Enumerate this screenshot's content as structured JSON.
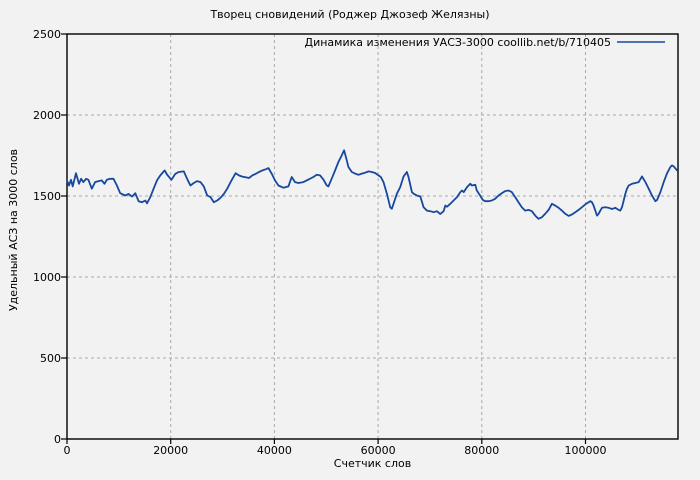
{
  "chart_data": {
    "type": "line",
    "title": "Творец сновидений (Роджер Джозеф Желязны)",
    "xlabel": "Счетчик слов",
    "ylabel": "Удельный АСЗ на 3000 слов",
    "xlim": [
      0,
      117840
    ],
    "ylim": [
      0,
      2500
    ],
    "x_tick_values": [
      0,
      20000,
      40000,
      60000,
      80000,
      100000
    ],
    "x_tick_labels": [
      "0",
      "20000",
      "40000",
      "60000",
      "80000",
      "100000"
    ],
    "y_tick_values": [
      0,
      500,
      1000,
      1500,
      2000,
      2500
    ],
    "y_tick_labels": [
      "0",
      "500",
      "1000",
      "1500",
      "2000",
      "2500"
    ],
    "grid": true,
    "legend_position": "top-right-inside",
    "series": [
      {
        "name": "Динамика изменения УАСЗ-3000 coollib.net/b/710405",
        "color": "#17489e",
        "points": [
          [
            0,
            1596
          ],
          [
            390,
            1565
          ],
          [
            780,
            1600
          ],
          [
            1100,
            1559
          ],
          [
            1740,
            1641
          ],
          [
            2320,
            1575
          ],
          [
            2710,
            1606
          ],
          [
            3160,
            1586
          ],
          [
            3680,
            1606
          ],
          [
            4130,
            1600
          ],
          [
            4780,
            1545
          ],
          [
            5420,
            1586
          ],
          [
            6070,
            1592
          ],
          [
            6710,
            1596
          ],
          [
            7230,
            1575
          ],
          [
            7680,
            1600
          ],
          [
            8330,
            1606
          ],
          [
            8970,
            1606
          ],
          [
            9620,
            1565
          ],
          [
            10260,
            1517
          ],
          [
            11230,
            1503
          ],
          [
            11880,
            1513
          ],
          [
            12520,
            1496
          ],
          [
            13170,
            1517
          ],
          [
            13810,
            1468
          ],
          [
            14460,
            1462
          ],
          [
            15100,
            1472
          ],
          [
            15420,
            1455
          ],
          [
            16070,
            1493
          ],
          [
            16710,
            1545
          ],
          [
            17360,
            1596
          ],
          [
            18000,
            1627
          ],
          [
            18840,
            1658
          ],
          [
            19290,
            1633
          ],
          [
            20130,
            1600
          ],
          [
            20900,
            1637
          ],
          [
            21550,
            1648
          ],
          [
            22520,
            1652
          ],
          [
            23160,
            1606
          ],
          [
            23800,
            1565
          ],
          [
            24450,
            1580
          ],
          [
            25090,
            1592
          ],
          [
            25740,
            1586
          ],
          [
            26380,
            1559
          ],
          [
            27030,
            1503
          ],
          [
            27680,
            1493
          ],
          [
            28320,
            1462
          ],
          [
            28970,
            1472
          ],
          [
            29610,
            1489
          ],
          [
            30260,
            1513
          ],
          [
            30900,
            1545
          ],
          [
            31550,
            1586
          ],
          [
            32520,
            1641
          ],
          [
            33160,
            1627
          ],
          [
            33810,
            1620
          ],
          [
            34450,
            1616
          ],
          [
            35100,
            1611
          ],
          [
            35740,
            1627
          ],
          [
            36390,
            1637
          ],
          [
            37030,
            1648
          ],
          [
            37680,
            1658
          ],
          [
            38320,
            1665
          ],
          [
            38840,
            1672
          ],
          [
            39480,
            1638
          ],
          [
            40120,
            1596
          ],
          [
            40770,
            1565
          ],
          [
            41730,
            1551
          ],
          [
            42700,
            1559
          ],
          [
            43340,
            1617
          ],
          [
            43980,
            1586
          ],
          [
            44630,
            1580
          ],
          [
            45590,
            1586
          ],
          [
            46560,
            1601
          ],
          [
            47520,
            1617
          ],
          [
            48160,
            1631
          ],
          [
            48810,
            1627
          ],
          [
            49450,
            1601
          ],
          [
            50100,
            1565
          ],
          [
            50420,
            1559
          ],
          [
            51060,
            1607
          ],
          [
            51710,
            1658
          ],
          [
            52350,
            1710
          ],
          [
            52990,
            1751
          ],
          [
            53440,
            1782
          ],
          [
            53960,
            1720
          ],
          [
            54280,
            1679
          ],
          [
            54930,
            1648
          ],
          [
            55570,
            1638
          ],
          [
            56210,
            1631
          ],
          [
            56860,
            1638
          ],
          [
            57500,
            1644
          ],
          [
            58140,
            1652
          ],
          [
            58790,
            1648
          ],
          [
            59430,
            1642
          ],
          [
            60080,
            1627
          ],
          [
            60530,
            1617
          ],
          [
            61040,
            1586
          ],
          [
            61690,
            1514
          ],
          [
            62330,
            1431
          ],
          [
            62650,
            1421
          ],
          [
            62970,
            1452
          ],
          [
            63620,
            1514
          ],
          [
            64260,
            1555
          ],
          [
            64910,
            1621
          ],
          [
            65550,
            1648
          ],
          [
            65870,
            1617
          ],
          [
            66520,
            1524
          ],
          [
            66840,
            1514
          ],
          [
            67480,
            1503
          ],
          [
            68130,
            1497
          ],
          [
            68770,
            1431
          ],
          [
            69420,
            1410
          ],
          [
            70060,
            1406
          ],
          [
            70700,
            1400
          ],
          [
            71350,
            1406
          ],
          [
            71990,
            1389
          ],
          [
            72640,
            1406
          ],
          [
            72960,
            1441
          ],
          [
            73280,
            1434
          ],
          [
            73920,
            1452
          ],
          [
            74570,
            1472
          ],
          [
            75210,
            1493
          ],
          [
            75850,
            1524
          ],
          [
            76180,
            1534
          ],
          [
            76500,
            1524
          ],
          [
            77140,
            1555
          ],
          [
            77790,
            1576
          ],
          [
            78110,
            1565
          ],
          [
            78750,
            1569
          ],
          [
            79030,
            1534
          ],
          [
            79670,
            1503
          ],
          [
            80190,
            1476
          ],
          [
            80640,
            1468
          ],
          [
            81280,
            1468
          ],
          [
            81930,
            1472
          ],
          [
            82570,
            1483
          ],
          [
            83220,
            1503
          ],
          [
            83860,
            1517
          ],
          [
            84500,
            1530
          ],
          [
            85150,
            1534
          ],
          [
            85790,
            1524
          ],
          [
            86440,
            1493
          ],
          [
            87080,
            1462
          ],
          [
            87720,
            1431
          ],
          [
            88370,
            1410
          ],
          [
            89010,
            1414
          ],
          [
            89660,
            1406
          ],
          [
            90300,
            1379
          ],
          [
            90940,
            1359
          ],
          [
            91590,
            1369
          ],
          [
            92230,
            1390
          ],
          [
            92880,
            1414
          ],
          [
            93520,
            1452
          ],
          [
            94160,
            1441
          ],
          [
            94810,
            1427
          ],
          [
            95450,
            1410
          ],
          [
            96100,
            1390
          ],
          [
            96740,
            1377
          ],
          [
            97380,
            1386
          ],
          [
            98030,
            1400
          ],
          [
            98670,
            1414
          ],
          [
            99320,
            1431
          ],
          [
            99960,
            1448
          ],
          [
            100600,
            1462
          ],
          [
            100930,
            1468
          ],
          [
            101250,
            1462
          ],
          [
            101570,
            1441
          ],
          [
            101890,
            1410
          ],
          [
            102210,
            1379
          ],
          [
            102530,
            1390
          ],
          [
            102860,
            1410
          ],
          [
            103180,
            1427
          ],
          [
            103820,
            1431
          ],
          [
            104460,
            1427
          ],
          [
            105110,
            1420
          ],
          [
            105750,
            1427
          ],
          [
            106390,
            1414
          ],
          [
            106720,
            1410
          ],
          [
            107040,
            1431
          ],
          [
            107360,
            1472
          ],
          [
            107680,
            1513
          ],
          [
            108000,
            1545
          ],
          [
            108330,
            1565
          ],
          [
            108970,
            1575
          ],
          [
            109610,
            1580
          ],
          [
            110260,
            1586
          ],
          [
            110900,
            1621
          ],
          [
            111550,
            1586
          ],
          [
            112190,
            1545
          ],
          [
            112830,
            1503
          ],
          [
            113480,
            1468
          ],
          [
            113800,
            1476
          ],
          [
            114440,
            1524
          ],
          [
            115090,
            1586
          ],
          [
            115730,
            1641
          ],
          [
            116370,
            1679
          ],
          [
            116690,
            1689
          ],
          [
            117020,
            1683
          ],
          [
            117660,
            1658
          ]
        ]
      }
    ]
  },
  "colors": {
    "background": "#f2f2f2",
    "line": "#17489e",
    "grid": "#a9a9a9",
    "border": "#000000",
    "text": "#000000"
  }
}
